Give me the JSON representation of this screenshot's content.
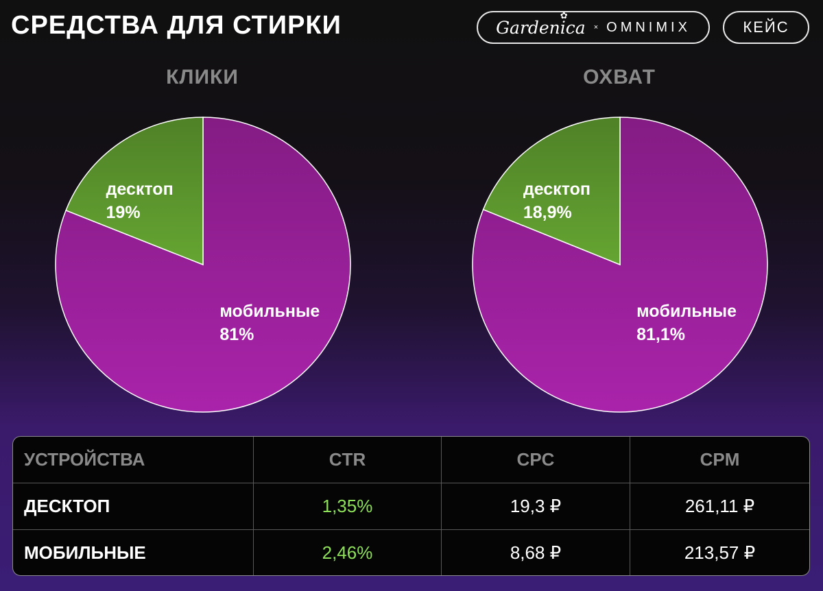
{
  "title": "СРЕДСТВА ДЛЯ СТИРКИ",
  "brand": {
    "left": "Gardenica",
    "separator": "×",
    "right": "OMNIMIX"
  },
  "case_button": "КЕЙС",
  "colors": {
    "mobile": "#8f1e90",
    "desktop": "#568c2a",
    "ctr_green": "#8ee05a"
  },
  "chart_data": [
    {
      "type": "pie",
      "title": "КЛИКИ",
      "slices": [
        {
          "name": "мобильные",
          "value": 81,
          "label": "81%",
          "color": "#8f1e90"
        },
        {
          "name": "десктоп",
          "value": 19,
          "label": "19%",
          "color": "#568c2a"
        }
      ]
    },
    {
      "type": "pie",
      "title": "ОХВАТ",
      "slices": [
        {
          "name": "мобильные",
          "value": 81.1,
          "label": "81,1%",
          "color": "#8f1e90"
        },
        {
          "name": "десктоп",
          "value": 18.9,
          "label": "18,9%",
          "color": "#568c2a"
        }
      ]
    }
  ],
  "table": {
    "headers": [
      "УСТРОЙСТВА",
      "CTR",
      "CPC",
      "CPM"
    ],
    "rows": [
      {
        "device": "ДЕСКТОП",
        "ctr": "1,35%",
        "cpc": "19,3 ₽",
        "cpm": "261,11 ₽"
      },
      {
        "device": "МОБИЛЬНЫЕ",
        "ctr": "2,46%",
        "cpc": "8,68 ₽",
        "cpm": "213,57 ₽"
      }
    ]
  }
}
